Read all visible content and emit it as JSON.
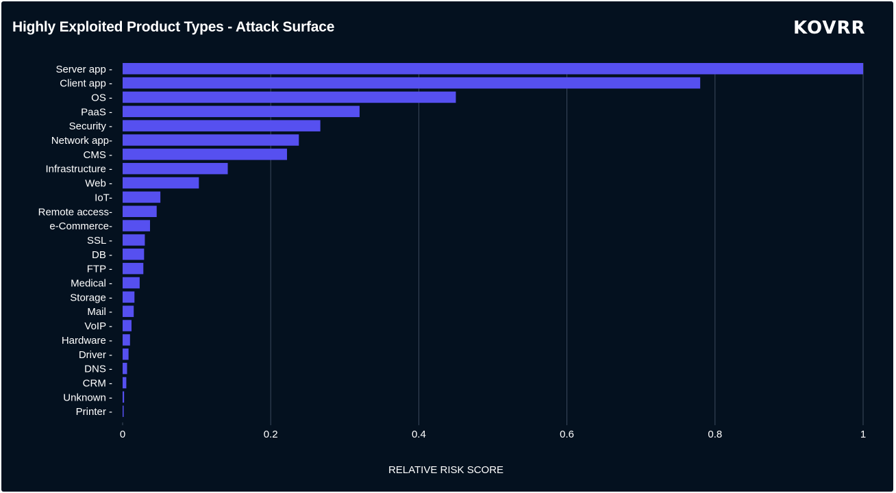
{
  "header": {
    "title": "Highly Exploited Product Types - Attack Surface",
    "logo_text": "KOVRR"
  },
  "colors": {
    "background": "#04111f",
    "bar": "#5650f0",
    "grid": "#3c4a5e",
    "text": "#ffffff"
  },
  "chart_data": {
    "type": "bar",
    "orientation": "horizontal",
    "title": "Highly Exploited Product Types - Attack Surface",
    "xlabel": "RELATIVE RISK SCORE",
    "ylabel": "",
    "xlim": [
      0,
      1
    ],
    "x_ticks": [
      "0",
      "0.2",
      "0.4",
      "0.6",
      "0.8",
      "1"
    ],
    "x_tick_values": [
      0,
      0.2,
      0.4,
      0.6,
      0.8,
      1
    ],
    "grid": true,
    "categories": [
      "Server app -",
      "Client app -",
      "OS -",
      "PaaS -",
      "Security -",
      "Network app-",
      "CMS -",
      "Infrastructure -",
      "Web -",
      "IoT-",
      "Remote access-",
      "e-Commerce-",
      "SSL -",
      "DB -",
      "FTP -",
      "Medical -",
      "Storage -",
      "Mail -",
      "VoIP -",
      "Hardware -",
      "Driver -",
      "DNS -",
      "CRM -",
      "Unknown -",
      "Printer -"
    ],
    "values": [
      1.0,
      0.78,
      0.45,
      0.32,
      0.267,
      0.238,
      0.222,
      0.142,
      0.103,
      0.051,
      0.046,
      0.037,
      0.03,
      0.029,
      0.028,
      0.023,
      0.016,
      0.015,
      0.012,
      0.01,
      0.008,
      0.006,
      0.005,
      0.002,
      0.001
    ]
  }
}
